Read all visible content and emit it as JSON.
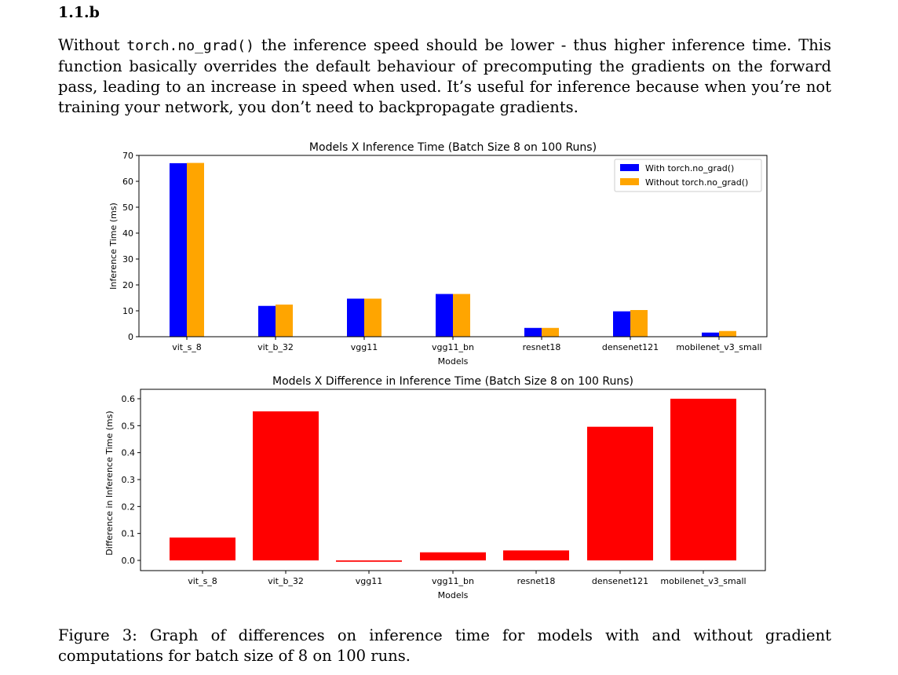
{
  "document": {
    "heading": "1.1.b",
    "paragraph_before_code": "Without ",
    "code_text": "torch.no_grad()",
    "paragraph_after_code": " the inference speed should be lower - thus higher inference time.  This function basically overrides the default behaviour of precomputing the gradients on the forward pass, leading to an increase in speed when used. It’s useful for inference because when you’re not training your network, you don’t need to backpropagate gradients.",
    "caption": "Figure 3: Graph of differences on inference time for models with and without gradient computations for batch size of 8 on 100 runs."
  },
  "chart_data": [
    {
      "type": "bar",
      "title": "Models X Inference Time (Batch Size 8 on 100 Runs)",
      "xlabel": "Models",
      "ylabel": "Inference Time (ms)",
      "categories": [
        "vit_s_8",
        "vit_b_32",
        "vgg11",
        "vgg11_bn",
        "resnet18",
        "densenet121",
        "mobilenet_v3_small"
      ],
      "ylim": [
        0,
        70
      ],
      "yticks": [
        0,
        10,
        20,
        30,
        40,
        50,
        60,
        70
      ],
      "legend_position": "top-right",
      "series": [
        {
          "name": "With torch.no_grad()",
          "color": "#0000ff",
          "values": [
            67.0,
            11.9,
            14.7,
            16.5,
            3.4,
            9.8,
            1.6
          ]
        },
        {
          "name": "Without torch.no_grad()",
          "color": "#ffa500",
          "values": [
            67.1,
            12.4,
            14.7,
            16.5,
            3.4,
            10.3,
            2.2
          ]
        }
      ]
    },
    {
      "type": "bar",
      "title": "Models X Difference in Inference Time (Batch Size 8 on 100 Runs)",
      "xlabel": "Models",
      "ylabel": "Difference in Inference Time (ms)",
      "categories": [
        "vit_s_8",
        "vit_b_32",
        "vgg11",
        "vgg11_bn",
        "resnet18",
        "densenet121",
        "mobilenet_v3_small"
      ],
      "ylim": [
        -0.01,
        0.6
      ],
      "yticks": [
        0.0,
        0.1,
        0.2,
        0.3,
        0.4,
        0.5,
        0.6
      ],
      "ytick_labels": [
        "0.0",
        "0.1",
        "0.2",
        "0.3",
        "0.4",
        "0.5",
        "0.6"
      ],
      "color": "#ff0000",
      "values": [
        0.085,
        0.553,
        -0.005,
        0.03,
        0.037,
        0.496,
        0.6
      ]
    }
  ]
}
